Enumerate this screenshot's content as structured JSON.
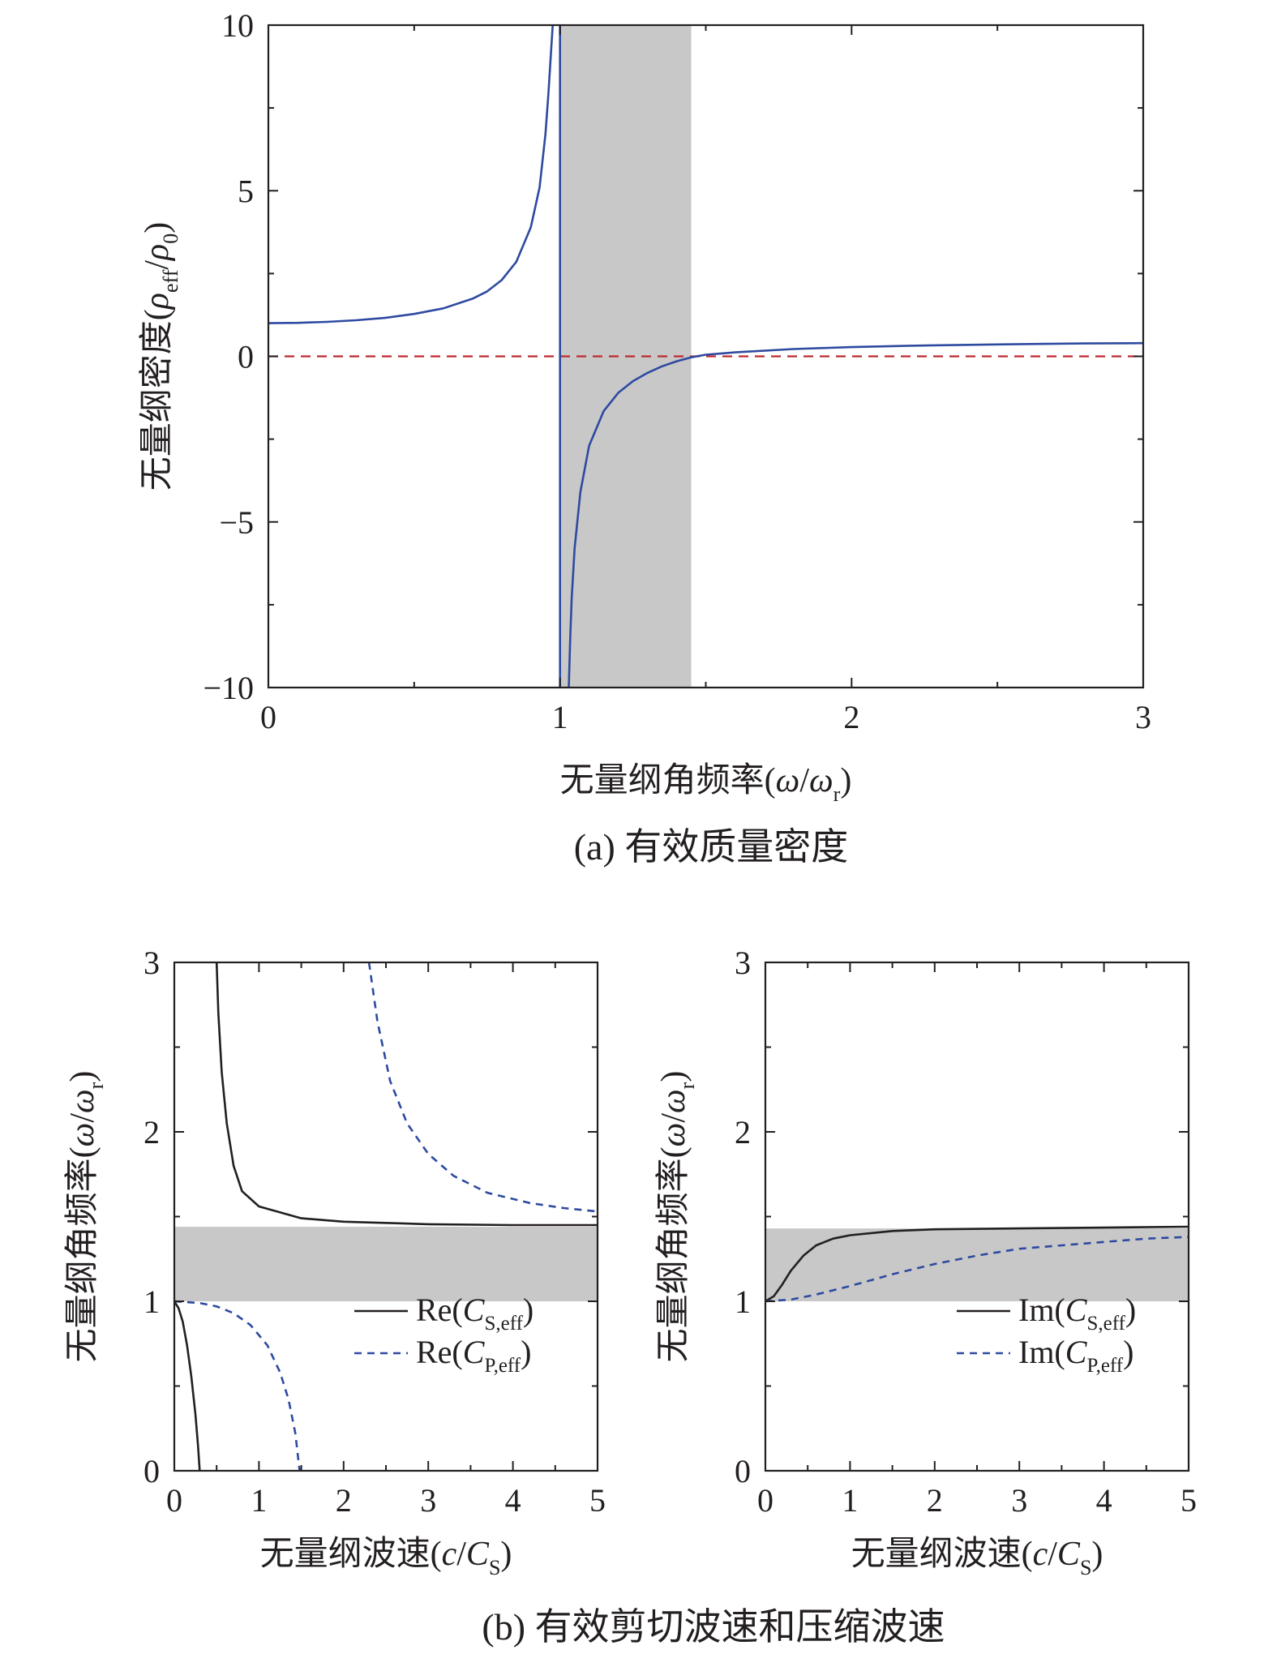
{
  "chart_data": [
    {
      "id": "a",
      "type": "line",
      "caption": "(a) 有效质量密度",
      "xlabel": {
        "main": "无量纲角频率(",
        "sym": "ω",
        "slash": "/",
        "sym2": "ω",
        "sub": "r",
        "close": ")"
      },
      "ylabel": {
        "main": "无量纲密度(",
        "sym": "ρ",
        "sub": "eff",
        "slash": "/",
        "sym2": "ρ",
        "sub2": "0",
        "close": ")"
      },
      "xlim": [
        0,
        3
      ],
      "ylim": [
        -10,
        10
      ],
      "xticks": [
        0,
        1,
        2,
        3
      ],
      "xtick_labels": [
        "0",
        "1",
        "2",
        "3"
      ],
      "yticks": [
        -10,
        -5,
        0,
        5,
        10
      ],
      "ytick_labels": [
        "−10",
        "−5",
        "0",
        "5",
        "10"
      ],
      "band": {
        "axis": "x",
        "range": [
          1.0,
          1.45
        ],
        "color": "#c8c8c8"
      },
      "reference_line": {
        "axis": "y",
        "value": 0,
        "color": "#c0272d",
        "dash": true
      },
      "series": [
        {
          "color": "#2e4aa0",
          "segments": [
            [
              [
                0.0,
                1.0
              ],
              [
                0.1,
                1.01
              ],
              [
                0.2,
                1.04
              ],
              [
                0.3,
                1.09
              ],
              [
                0.4,
                1.16
              ],
              [
                0.5,
                1.28
              ],
              [
                0.6,
                1.45
              ],
              [
                0.7,
                1.74
              ],
              [
                0.75,
                1.96
              ],
              [
                0.8,
                2.3
              ],
              [
                0.85,
                2.85
              ],
              [
                0.9,
                3.9
              ],
              [
                0.93,
                5.1
              ],
              [
                0.95,
                6.7
              ],
              [
                0.96,
                7.9
              ],
              [
                0.97,
                9.3
              ],
              [
                0.975,
                10.0
              ]
            ],
            [
              [
                1.0,
                10.0
              ],
              [
                1.0,
                -10.0
              ]
            ],
            [
              [
                1.03,
                -10.0
              ],
              [
                1.035,
                -8.5
              ],
              [
                1.04,
                -7.3
              ],
              [
                1.05,
                -5.8
              ],
              [
                1.07,
                -4.1
              ],
              [
                1.1,
                -2.7
              ],
              [
                1.15,
                -1.65
              ],
              [
                1.2,
                -1.1
              ],
              [
                1.25,
                -0.75
              ],
              [
                1.3,
                -0.5
              ],
              [
                1.35,
                -0.3
              ],
              [
                1.4,
                -0.15
              ],
              [
                1.45,
                -0.03
              ],
              [
                1.5,
                0.05
              ],
              [
                1.6,
                0.12
              ],
              [
                1.8,
                0.22
              ],
              [
                2.0,
                0.28
              ],
              [
                2.2,
                0.32
              ],
              [
                2.5,
                0.36
              ],
              [
                2.8,
                0.39
              ],
              [
                3.0,
                0.4
              ]
            ]
          ]
        }
      ]
    },
    {
      "id": "b-left",
      "type": "line",
      "xlabel": {
        "main": "无量纲波速(",
        "sym": "c",
        "slash": "/",
        "sym2": "C",
        "sub": "S",
        "close": ")"
      },
      "ylabel": {
        "main": "无量纲角频率(",
        "sym": "ω",
        "slash": "/",
        "sym2": "ω",
        "sub": "r",
        "close": ")"
      },
      "xlim": [
        0,
        5
      ],
      "ylim": [
        0,
        3
      ],
      "xticks": [
        0,
        1,
        2,
        3,
        4,
        5
      ],
      "xtick_labels": [
        "0",
        "1",
        "2",
        "3",
        "4",
        "5"
      ],
      "yticks": [
        0,
        1,
        2,
        3
      ],
      "ytick_labels": [
        "0",
        "1",
        "2",
        "3"
      ],
      "band": {
        "axis": "y",
        "range": [
          1.0,
          1.44
        ],
        "color": "#c8c8c8"
      },
      "legend": {
        "position": "lower-right",
        "entries": [
          {
            "pre": "Re(",
            "sym": "C",
            "sub": "S,eff",
            "post": ")",
            "dash": false,
            "color": "#231f20"
          },
          {
            "pre": "Re(",
            "sym": "C",
            "sub": "P,eff",
            "post": ")",
            "dash": true,
            "color": "#2e4aa0"
          }
        ]
      },
      "series": [
        {
          "color": "#231f20",
          "dash": false,
          "segments": [
            [
              [
                0.0,
                1.0
              ],
              [
                0.05,
                0.96
              ],
              [
                0.1,
                0.88
              ],
              [
                0.15,
                0.74
              ],
              [
                0.2,
                0.56
              ],
              [
                0.25,
                0.33
              ],
              [
                0.28,
                0.15
              ],
              [
                0.3,
                0.0
              ]
            ],
            [
              [
                0.5,
                3.0
              ],
              [
                0.52,
                2.7
              ],
              [
                0.56,
                2.35
              ],
              [
                0.62,
                2.05
              ],
              [
                0.7,
                1.8
              ],
              [
                0.8,
                1.65
              ],
              [
                1.0,
                1.56
              ],
              [
                1.5,
                1.49
              ],
              [
                2.0,
                1.47
              ],
              [
                3.0,
                1.455
              ],
              [
                4.0,
                1.45
              ],
              [
                5.0,
                1.45
              ]
            ]
          ]
        },
        {
          "color": "#2e4aa0",
          "dash": true,
          "segments": [
            [
              [
                0.0,
                1.0
              ],
              [
                0.3,
                0.99
              ],
              [
                0.5,
                0.97
              ],
              [
                0.7,
                0.93
              ],
              [
                0.9,
                0.86
              ],
              [
                1.1,
                0.74
              ],
              [
                1.25,
                0.58
              ],
              [
                1.35,
                0.42
              ],
              [
                1.43,
                0.22
              ],
              [
                1.48,
                0.0
              ]
            ],
            [
              [
                2.3,
                3.0
              ],
              [
                2.4,
                2.65
              ],
              [
                2.55,
                2.3
              ],
              [
                2.75,
                2.05
              ],
              [
                3.0,
                1.87
              ],
              [
                3.3,
                1.74
              ],
              [
                3.7,
                1.64
              ],
              [
                4.2,
                1.58
              ],
              [
                4.6,
                1.55
              ],
              [
                5.0,
                1.53
              ]
            ]
          ]
        }
      ]
    },
    {
      "id": "b-right",
      "type": "line",
      "xlabel": {
        "main": "无量纲波速(",
        "sym": "c",
        "slash": "/",
        "sym2": "C",
        "sub": "S",
        "close": ")"
      },
      "ylabel": {
        "main": "无量纲角频率(",
        "sym": "ω",
        "slash": "/",
        "sym2": "ω",
        "sub": "r",
        "close": ")"
      },
      "xlim": [
        0,
        5
      ],
      "ylim": [
        0,
        3
      ],
      "xticks": [
        0,
        1,
        2,
        3,
        4,
        5
      ],
      "xtick_labels": [
        "0",
        "1",
        "2",
        "3",
        "4",
        "5"
      ],
      "yticks": [
        0,
        1,
        2,
        3
      ],
      "ytick_labels": [
        "0",
        "1",
        "2",
        "3"
      ],
      "band": {
        "axis": "y",
        "range": [
          1.0,
          1.43
        ],
        "color": "#c8c8c8"
      },
      "legend": {
        "position": "lower-right",
        "entries": [
          {
            "pre": "Im(",
            "sym": "C",
            "sub": "S,eff",
            "post": ")",
            "dash": false,
            "color": "#231f20"
          },
          {
            "pre": "Im(",
            "sym": "C",
            "sub": "P,eff",
            "post": ")",
            "dash": true,
            "color": "#2e4aa0"
          }
        ]
      },
      "series": [
        {
          "color": "#231f20",
          "dash": false,
          "segments": [
            [
              [
                0.0,
                1.0
              ],
              [
                0.1,
                1.03
              ],
              [
                0.2,
                1.1
              ],
              [
                0.3,
                1.18
              ],
              [
                0.45,
                1.27
              ],
              [
                0.6,
                1.33
              ],
              [
                0.8,
                1.37
              ],
              [
                1.0,
                1.39
              ],
              [
                1.5,
                1.415
              ],
              [
                2.0,
                1.425
              ],
              [
                3.0,
                1.43
              ],
              [
                4.0,
                1.435
              ],
              [
                5.0,
                1.44
              ]
            ]
          ]
        },
        {
          "color": "#2e4aa0",
          "dash": true,
          "segments": [
            [
              [
                0.0,
                1.0
              ],
              [
                0.3,
                1.01
              ],
              [
                0.6,
                1.04
              ],
              [
                1.0,
                1.09
              ],
              [
                1.5,
                1.16
              ],
              [
                2.0,
                1.22
              ],
              [
                2.5,
                1.27
              ],
              [
                3.0,
                1.31
              ],
              [
                3.5,
                1.33
              ],
              [
                4.0,
                1.35
              ],
              [
                4.5,
                1.37
              ],
              [
                5.0,
                1.38
              ]
            ]
          ]
        }
      ]
    }
  ],
  "captions": {
    "b": "(b) 有效剪切波速和压缩波速"
  }
}
